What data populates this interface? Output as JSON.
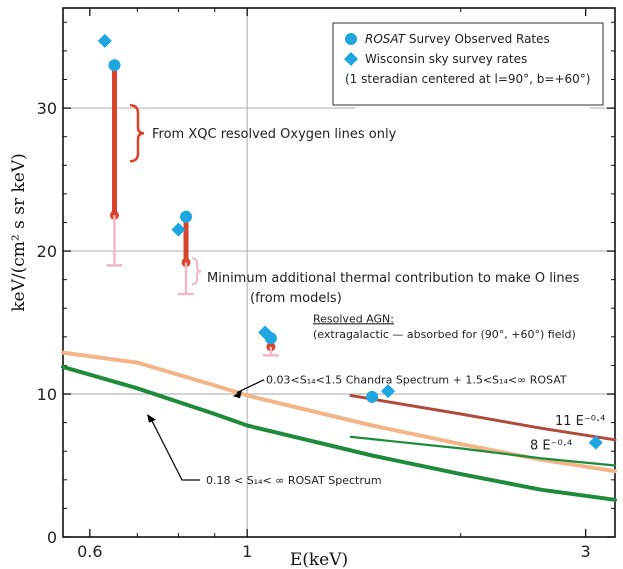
{
  "chart_data": {
    "type": "scatter",
    "xlabel": "E(keV)",
    "ylabel": "keV/(cm² s sr keV)",
    "xscale": "log",
    "xlim": [
      0.55,
      3.3
    ],
    "ylim": [
      0,
      37
    ],
    "grid": "partial",
    "x_ticks": [
      {
        "value": 0.6,
        "label": "0.6"
      },
      {
        "value": 1,
        "label": "1"
      },
      {
        "value": 3,
        "label": "3"
      }
    ],
    "y_ticks": [
      {
        "value": 0,
        "label": "0"
      },
      {
        "value": 10,
        "label": "10"
      },
      {
        "value": 20,
        "label": "20"
      },
      {
        "value": 30,
        "label": "30"
      }
    ],
    "legend": {
      "placement": "top-right",
      "entries": [
        {
          "marker": "circle",
          "name_italic": "ROSAT",
          "name_rest": "Survey Observed Rates"
        },
        {
          "marker": "diamond",
          "name_italic": "",
          "name_rest": "Wisconsin sky survey rates"
        },
        {
          "marker": "none",
          "name_italic": "",
          "name_rest": "(1 steradian centered at l=90°, b=+60°)"
        }
      ]
    },
    "series": [
      {
        "name": "ROSAT Survey Observed Rates",
        "marker": "circle",
        "color": "#1da6e0",
        "points": [
          {
            "x": 0.65,
            "y": 33.0
          },
          {
            "x": 0.82,
            "y": 22.4
          },
          {
            "x": 1.08,
            "y": 13.9
          },
          {
            "x": 1.5,
            "y": 9.8
          }
        ]
      },
      {
        "name": "Wisconsin sky survey rates",
        "marker": "diamond",
        "color": "#1da6e0",
        "points": [
          {
            "x": 0.63,
            "y": 34.7
          },
          {
            "x": 0.8,
            "y": 21.5
          },
          {
            "x": 1.06,
            "y": 14.3
          },
          {
            "x": 1.58,
            "y": 10.2
          },
          {
            "x": 3.1,
            "y": 6.6
          }
        ]
      },
      {
        "name": "0.18 < S14< ∞ ROSAT Spectrum",
        "type": "line",
        "color": "#1e8a3c",
        "points": [
          {
            "x": 0.55,
            "y": 11.9
          },
          {
            "x": 0.7,
            "y": 10.4
          },
          {
            "x": 0.9,
            "y": 8.6
          },
          {
            "x": 1.0,
            "y": 7.8
          },
          {
            "x": 1.5,
            "y": 5.7
          },
          {
            "x": 2.0,
            "y": 4.4
          },
          {
            "x": 2.6,
            "y": 3.3
          },
          {
            "x": 3.3,
            "y": 2.6
          }
        ]
      },
      {
        "name": "0.03<S14<1.5 Chandra Spectrum + 1.5<S14<∞ ROSAT",
        "type": "line",
        "color": "#f3b487",
        "points": [
          {
            "x": 0.55,
            "y": 12.9
          },
          {
            "x": 0.7,
            "y": 12.2
          },
          {
            "x": 0.9,
            "y": 10.6
          },
          {
            "x": 1.0,
            "y": 9.9
          },
          {
            "x": 1.5,
            "y": 7.8
          },
          {
            "x": 2.0,
            "y": 6.5
          },
          {
            "x": 2.6,
            "y": 5.4
          },
          {
            "x": 3.3,
            "y": 4.6
          }
        ]
      },
      {
        "name": "11 E^-0.4",
        "type": "line",
        "color": "#b04a3c",
        "points": [
          {
            "x": 1.4,
            "y": 9.9
          },
          {
            "x": 2.0,
            "y": 8.6
          },
          {
            "x": 2.6,
            "y": 7.6
          },
          {
            "x": 3.3,
            "y": 6.8
          }
        ]
      },
      {
        "name": "8 E^-0.4",
        "type": "line",
        "color": "#1e8a3c",
        "points": [
          {
            "x": 1.4,
            "y": 7.0
          },
          {
            "x": 2.0,
            "y": 6.2
          },
          {
            "x": 2.6,
            "y": 5.5
          },
          {
            "x": 3.3,
            "y": 5.0
          }
        ]
      }
    ],
    "error_bars": [
      {
        "x": 0.65,
        "y_low": 22.5,
        "y_high": 32.8,
        "color": "#d9422b",
        "kind": "oxygen-lines"
      },
      {
        "x": 0.65,
        "y_low": 19.0,
        "y_high": 22.5,
        "color": "#f2b8c7",
        "kind": "thermal-min"
      },
      {
        "x": 0.82,
        "y_low": 19.2,
        "y_high": 22.2,
        "color": "#d9422b",
        "kind": "oxygen-lines"
      },
      {
        "x": 0.82,
        "y_low": 17.0,
        "y_high": 19.2,
        "color": "#f2b8c7",
        "kind": "thermal-min"
      },
      {
        "x": 1.08,
        "y_low": 13.3,
        "y_high": 13.9,
        "color": "#d9422b",
        "kind": "oxygen-lines"
      },
      {
        "x": 1.08,
        "y_low": 12.7,
        "y_high": 13.3,
        "color": "#f2b8c7",
        "kind": "thermal-min"
      }
    ],
    "annotations": [
      {
        "id": "oxygen",
        "text": "From XQC resolved Oxygen lines only"
      },
      {
        "id": "thermal1",
        "text": "Minimum additional thermal contribution to make O lines"
      },
      {
        "id": "thermal2",
        "text": "(from models)"
      },
      {
        "id": "agn1",
        "text": "Resolved AGN:"
      },
      {
        "id": "agn2",
        "text": "(extragalactic — absorbed for (90°, +60°) field)"
      },
      {
        "id": "chandra",
        "text": "0.03<S₁₄<1.5 Chandra Spectrum + 1.5<S₁₄<∞ ROSAT"
      },
      {
        "id": "rosatspec",
        "text": "0.18 < S₁₄< ∞  ROSAT Spectrum"
      },
      {
        "id": "fit11",
        "text": "11 E⁻⁰·⁴"
      },
      {
        "id": "fit8",
        "text": "8 E⁻⁰·⁴"
      }
    ]
  }
}
